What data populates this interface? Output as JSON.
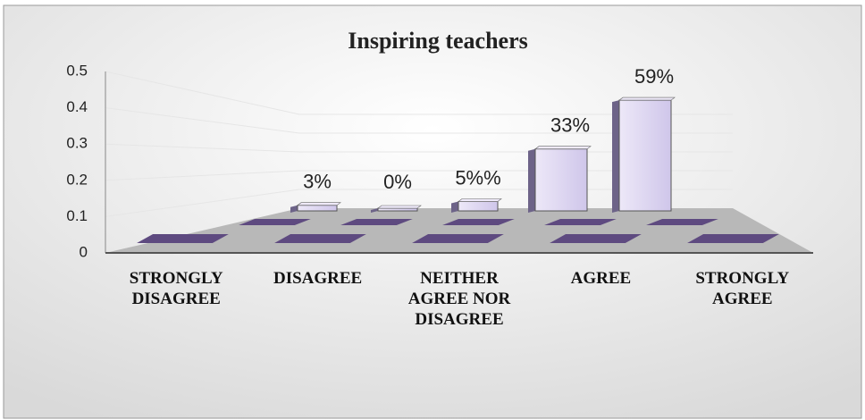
{
  "chart_data": {
    "type": "bar3d",
    "title": "Inspiring teachers",
    "categories": [
      "STRONGLY DISAGREE",
      "DISAGREE",
      "NEITHER AGREE NOR DISAGREE",
      "AGREE",
      "STRONGLY AGREE"
    ],
    "series": [
      {
        "color": "#d9d2ee",
        "values": [
          0.03,
          0,
          0.05,
          0.33,
          0.59
        ],
        "value_labels": [
          "3%",
          "0%",
          "5%%",
          "33%",
          "59%"
        ]
      }
    ],
    "ylim": [
      0,
      0.5
    ],
    "yticks": [
      0,
      0.1,
      0.2,
      0.3,
      0.4,
      0.5
    ],
    "grid": true
  }
}
